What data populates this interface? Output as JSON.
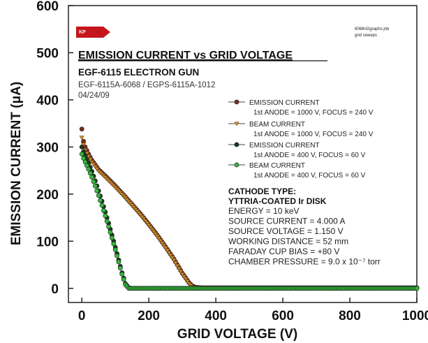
{
  "chart_data": {
    "type": "scatter",
    "title": "EMISSION CURRENT vs GRID VOLTAGE",
    "subtitle": "EGF-6115 ELECTRON GUN",
    "info_lines": [
      "EGF-6115A-6068 / EGPS-6115A-1012",
      "04/24/09"
    ],
    "file_note": [
      "6068nOgraphs.jnb",
      "grid sweeps"
    ],
    "logo_text": "KP",
    "xlabel": "GRID VOLTAGE (V)",
    "ylabel": "EMISSION CURRENT (μA)",
    "xlim": [
      -40,
      1000
    ],
    "ylim": [
      -30,
      600
    ],
    "xticks": [
      0,
      200,
      400,
      600,
      800,
      1000
    ],
    "yticks": [
      0,
      100,
      200,
      300,
      400,
      500,
      600
    ],
    "series": [
      {
        "name": "EMISSION CURRENT",
        "desc": "1st ANODE = 1000 V, FOCUS = 240 V",
        "marker": "circle",
        "color": "#7a2e1e",
        "x": [
          0,
          5,
          10,
          20,
          30,
          40,
          50,
          75,
          100,
          125,
          150,
          175,
          200,
          225,
          250,
          275,
          300,
          320,
          330,
          340,
          360,
          400,
          500,
          600,
          700,
          800,
          900,
          1000
        ],
        "y": [
          338,
          312,
          300,
          285,
          272,
          262,
          252,
          235,
          217,
          198,
          178,
          158,
          136,
          113,
          88,
          62,
          32,
          12,
          5,
          2,
          1,
          1,
          1,
          1,
          1,
          1,
          1,
          1
        ]
      },
      {
        "name": "BEAM CURRENT",
        "desc": "1st ANODE = 1000 V, FOCUS = 240 V",
        "marker": "triangle",
        "color": "#c98a2a",
        "x": [
          0,
          5,
          10,
          20,
          30,
          40,
          50,
          75,
          100,
          125,
          150,
          175,
          200,
          225,
          250,
          275,
          300,
          320,
          330,
          340,
          360,
          400,
          500,
          600,
          700,
          800,
          900,
          1000
        ],
        "y": [
          320,
          305,
          293,
          280,
          268,
          258,
          249,
          232,
          214,
          196,
          176,
          156,
          134,
          111,
          86,
          60,
          30,
          10,
          3,
          1,
          0,
          0,
          0,
          0,
          0,
          0,
          0,
          0
        ]
      },
      {
        "name": "EMISSION CURRENT",
        "desc": "1st ANODE = 400 V, FOCUS = 60 V",
        "marker": "circle",
        "color": "#1c3a1c",
        "x": [
          0,
          5,
          10,
          20,
          30,
          40,
          50,
          60,
          70,
          80,
          90,
          100,
          110,
          120,
          130,
          140,
          150,
          200,
          300,
          400,
          500,
          600,
          700,
          800,
          900,
          1000
        ],
        "y": [
          300,
          290,
          282,
          266,
          248,
          228,
          207,
          185,
          162,
          138,
          113,
          87,
          60,
          33,
          10,
          1,
          0,
          0,
          0,
          0,
          0,
          0,
          0,
          0,
          0,
          0
        ]
      },
      {
        "name": "BEAM CURRENT",
        "desc": "1st ANODE = 400 V, FOCUS = 60 V",
        "marker": "circle",
        "color": "#33b83a",
        "x": [
          0,
          5,
          10,
          20,
          30,
          40,
          50,
          60,
          70,
          80,
          90,
          100,
          110,
          120,
          130,
          140,
          150,
          200,
          300,
          400,
          500,
          600,
          700,
          800,
          900,
          1000
        ],
        "y": [
          285,
          276,
          268,
          253,
          236,
          217,
          197,
          176,
          154,
          131,
          107,
          82,
          56,
          30,
          8,
          0,
          0,
          0,
          0,
          0,
          0,
          0,
          0,
          0,
          0,
          0
        ]
      }
    ],
    "cathode_title": [
      "CATHODE TYPE:",
      "YTTRIA-COATED Ir DISK"
    ],
    "conditions": [
      "ENERGY = 10 keV",
      "SOURCE CURRENT = 4.000 A",
      "SOURCE VOLTAGE = 1.150 V",
      "WORKING DISTANCE = 52 mm",
      "FARADAY CUP BIAS = +80 V",
      "CHAMBER PRESSURE = 9.0 x 10⁻⁷ torr"
    ],
    "legend_position": "right"
  }
}
